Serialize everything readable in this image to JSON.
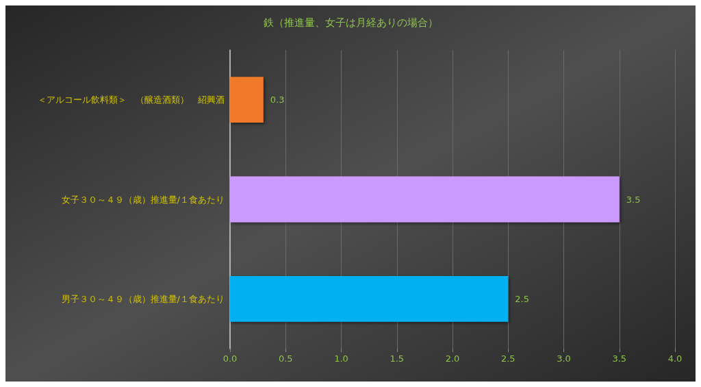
{
  "chart_data": {
    "type": "bar",
    "orientation": "horizontal",
    "title": "鉄（推進量、女子は月経ありの場合）",
    "categories": [
      "＜アルコール飲料類＞　（醸造酒類）　紹興酒",
      "女子３０～４９（歳）推進量/１食あたり",
      "男子３０～４９（歳）推進量/１食あたり"
    ],
    "values": [
      0.3,
      3.5,
      2.5
    ],
    "colors": [
      "#f07a2a",
      "#cc99ff",
      "#00b0f0"
    ],
    "xlim": [
      0,
      4
    ],
    "xticks": [
      {
        "value": 0,
        "label": "0.0"
      },
      {
        "value": 0.5,
        "label": "0.5"
      },
      {
        "value": 1,
        "label": "1.0"
      },
      {
        "value": 1.5,
        "label": "1.5"
      },
      {
        "value": 2,
        "label": "2.0"
      },
      {
        "value": 2.5,
        "label": "2.5"
      },
      {
        "value": 3,
        "label": "3.0"
      },
      {
        "value": 3.5,
        "label": "3.5"
      },
      {
        "value": 4,
        "label": "4.0"
      }
    ],
    "grid": "x",
    "data_labels": true
  }
}
